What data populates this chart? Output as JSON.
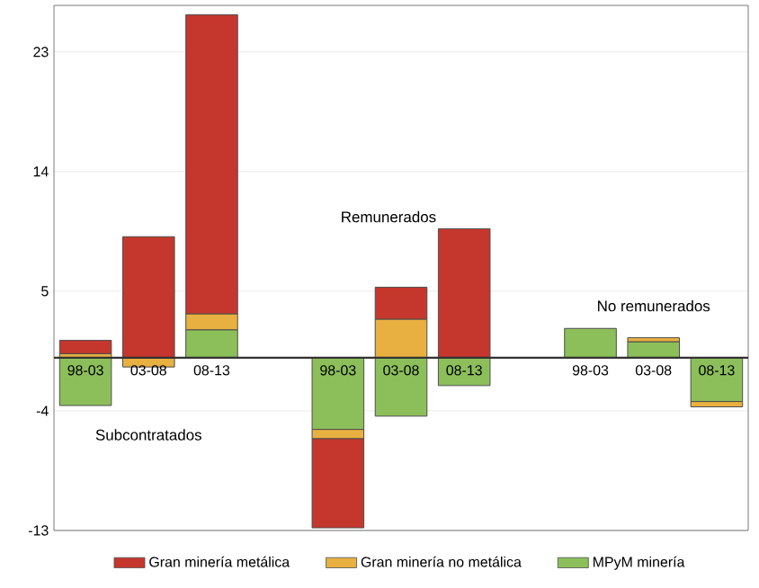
{
  "chart_data": {
    "type": "bar",
    "stacked": true,
    "categories": [
      "98-03",
      "03-08",
      "08-13",
      null,
      "98-03",
      "03-08",
      "08-13",
      null,
      "98-03",
      "03-08",
      "08-13"
    ],
    "series": [
      {
        "name": "MPyM minería",
        "color": "#8cbf5a",
        "values": [
          -3.6,
          null,
          2.1,
          null,
          -5.4,
          -4.4,
          -2.1,
          null,
          2.2,
          1.2,
          -3.3
        ]
      },
      {
        "name": "Gran minería no metálica",
        "color": "#e8b040",
        "values": [
          0.3,
          -0.7,
          1.2,
          null,
          -0.7,
          2.9,
          null,
          null,
          null,
          0.3,
          -0.4
        ]
      },
      {
        "name": "Gran minería metálica",
        "color": "#c5372c",
        "values": [
          1.0,
          9.1,
          22.5,
          null,
          -6.7,
          2.4,
          9.7,
          null,
          null,
          null,
          null
        ]
      }
    ],
    "ylim": [
      -13,
      26.5
    ],
    "yticks": [
      -13,
      -4,
      5,
      14,
      23
    ],
    "grid": "y",
    "legend": "bottom",
    "annotations": [
      "Subcontratados",
      "Remunerados",
      "No remunerados"
    ]
  }
}
